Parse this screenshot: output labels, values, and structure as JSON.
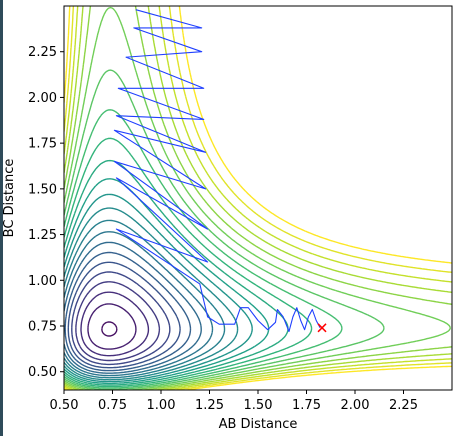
{
  "chart_data": {
    "type": "contour",
    "xlabel": "AB Distance",
    "ylabel": "BC Distance",
    "xlim": [
      0.5,
      2.5
    ],
    "ylim": [
      0.4,
      2.5
    ],
    "xticks": [
      "0.50",
      "0.75",
      "1.00",
      "1.25",
      "1.50",
      "1.75",
      "2.00",
      "2.25"
    ],
    "yticks": [
      "0.50",
      "0.75",
      "1.00",
      "1.25",
      "1.50",
      "1.75",
      "2.00",
      "2.25"
    ],
    "colormap": "viridis",
    "contour_levels": 24,
    "trajectory": {
      "color": "#1f3fff",
      "points": [
        [
          0.87,
          2.48
        ],
        [
          1.21,
          2.38
        ],
        [
          0.86,
          2.38
        ],
        [
          1.21,
          2.25
        ],
        [
          0.82,
          2.22
        ],
        [
          1.22,
          2.05
        ],
        [
          0.78,
          2.05
        ],
        [
          1.22,
          1.88
        ],
        [
          0.77,
          1.9
        ],
        [
          1.23,
          1.7
        ],
        [
          0.76,
          1.82
        ],
        [
          1.23,
          1.5
        ],
        [
          0.76,
          1.65
        ],
        [
          1.24,
          1.28
        ],
        [
          0.77,
          1.56
        ],
        [
          1.24,
          1.1
        ],
        [
          0.77,
          1.28
        ],
        [
          1.2,
          0.98
        ],
        [
          1.24,
          0.8
        ],
        [
          1.3,
          0.76
        ],
        [
          1.38,
          0.76
        ],
        [
          1.41,
          0.85
        ],
        [
          1.45,
          0.85
        ],
        [
          1.5,
          0.78
        ],
        [
          1.55,
          0.73
        ],
        [
          1.59,
          0.77
        ],
        [
          1.6,
          0.84
        ],
        [
          1.63,
          0.8
        ],
        [
          1.66,
          0.72
        ],
        [
          1.68,
          0.8
        ],
        [
          1.7,
          0.85
        ],
        [
          1.72,
          0.78
        ],
        [
          1.74,
          0.73
        ],
        [
          1.76,
          0.8
        ],
        [
          1.78,
          0.84
        ],
        [
          1.8,
          0.78
        ],
        [
          1.82,
          0.74
        ]
      ]
    },
    "end_marker": {
      "symbol": "x",
      "color": "#ff0000",
      "x": 1.83,
      "y": 0.74
    }
  }
}
